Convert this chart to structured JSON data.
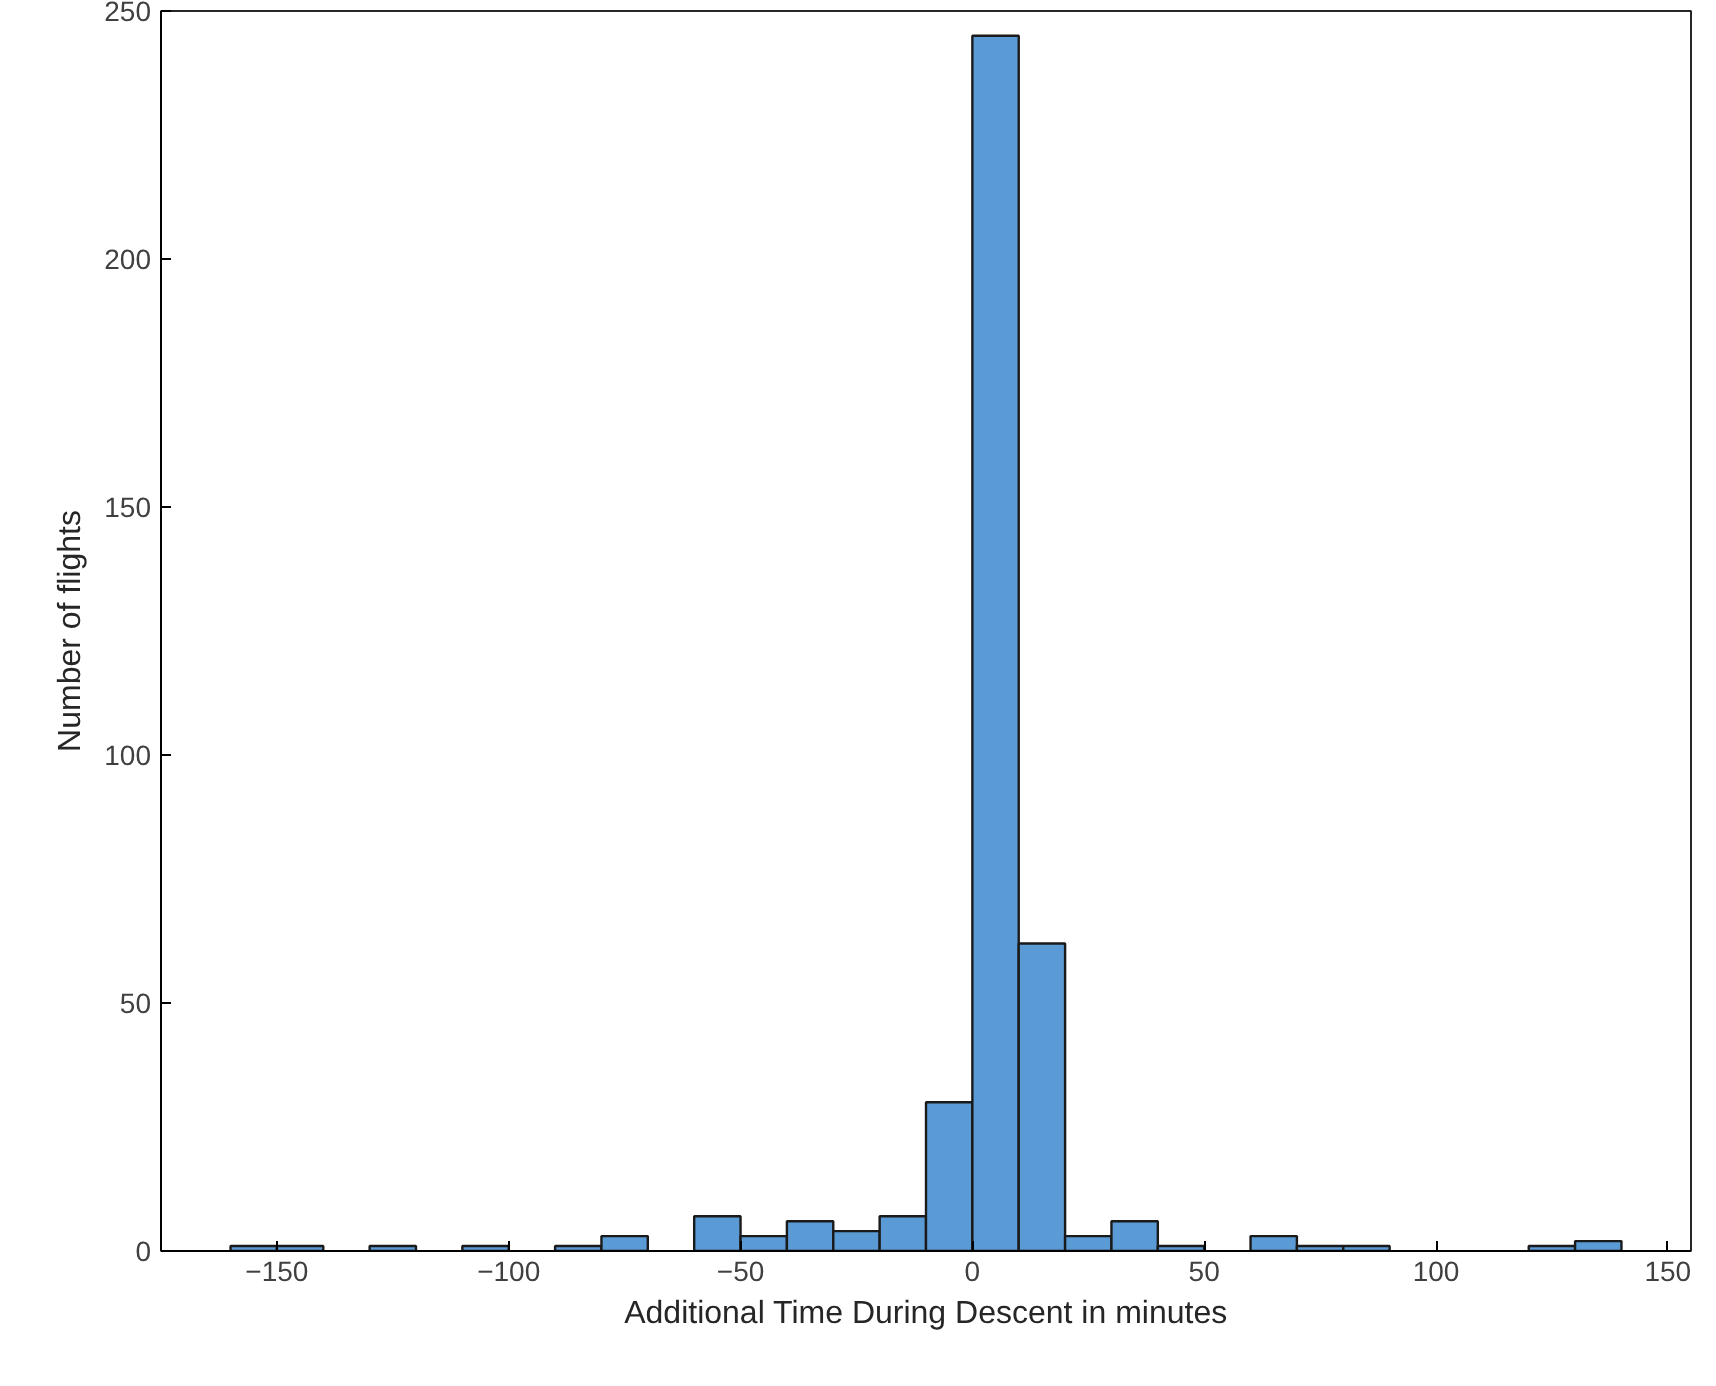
{
  "chart_data": {
    "type": "histogram",
    "xlabel": "Additional Time During Descent in minutes",
    "ylabel": "Number of flights",
    "bins": [
      -160,
      -150,
      -140,
      -130,
      -120,
      -110,
      -100,
      -90,
      -80,
      -70,
      -60,
      -50,
      -40,
      -30,
      -20,
      -10,
      0,
      10,
      20,
      30,
      40,
      50,
      60,
      70,
      80,
      90,
      100,
      110,
      120,
      130,
      140
    ],
    "values": [
      1,
      1,
      0,
      1,
      0,
      1,
      0,
      1,
      3,
      0,
      7,
      3,
      6,
      4,
      7,
      30,
      245,
      62,
      3,
      6,
      1,
      0,
      3,
      1,
      1,
      0,
      0,
      0,
      1,
      2
    ],
    "color": "#5a9bd5",
    "xlim": [
      -175,
      155
    ],
    "xticks": [
      -150,
      -100,
      -50,
      0,
      50,
      100,
      150
    ],
    "ylim": [
      0,
      250
    ],
    "yticks": [
      0,
      50,
      100,
      150,
      200,
      250
    ],
    "grid": false
  }
}
